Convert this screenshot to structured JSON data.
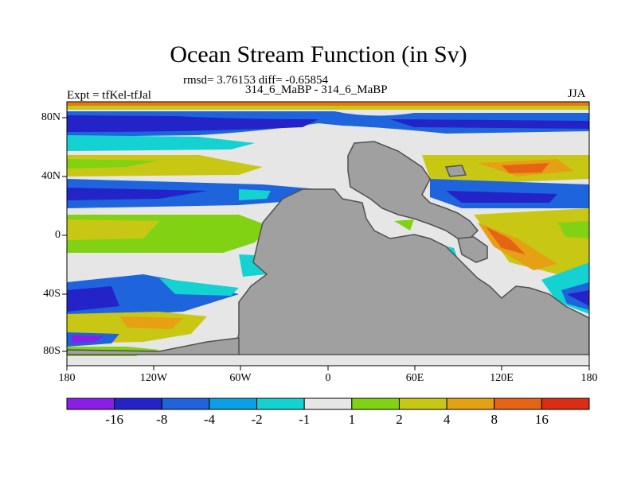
{
  "title": "Ocean Stream Function (in Sv)",
  "stats_line": "rmsd= 3.76153 diff= -0.65854",
  "comparison": "314_6_MaBP - 314_6_MaBP",
  "experiment": "Expt = tfKel-tfJal",
  "season": "JJA",
  "axes": {
    "x_ticks": [
      "180",
      "120W",
      "60W",
      "0",
      "60E",
      "120E",
      "180"
    ],
    "y_ticks": [
      "80N",
      "40N",
      "0",
      "40S",
      "80S"
    ]
  },
  "colorbar": {
    "labels": [
      "-16",
      "-8",
      "-4",
      "-2",
      "-1",
      "1",
      "2",
      "4",
      "8",
      "16"
    ],
    "colors": [
      "#8a1ee6",
      "#2323c8",
      "#1e64dc",
      "#0aa0e6",
      "#14d2d2",
      "#e6e6e6",
      "#82d214",
      "#c8c814",
      "#e6a014",
      "#e66414",
      "#dc2d14"
    ]
  },
  "palette": {
    "land": "#a0a0a0",
    "neutral": "#e6e6e6"
  }
}
